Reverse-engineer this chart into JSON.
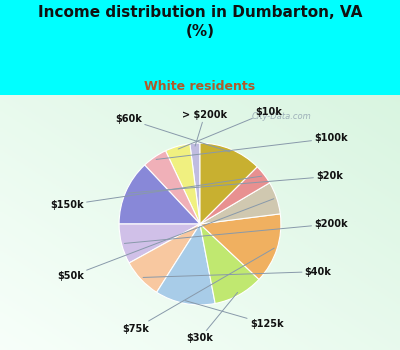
{
  "title": "Income distribution in Dumbarton, VA\n(%)",
  "subtitle": "White residents",
  "title_color": "#111111",
  "subtitle_color": "#b05a2a",
  "labels": [
    "> $200k",
    "$10k",
    "$100k",
    "$20k",
    "$200k",
    "$40k",
    "$125k",
    "$30k",
    "$75k",
    "$50k",
    "$150k",
    "$60k"
  ],
  "values": [
    2.0,
    5.0,
    5.0,
    13.0,
    8.0,
    8.0,
    12.0,
    10.0,
    14.0,
    6.5,
    4.0,
    12.5
  ],
  "colors": [
    "#c0bce0",
    "#f0f080",
    "#f0b0b8",
    "#8888d8",
    "#d0c0e8",
    "#f8c8a0",
    "#a8cce8",
    "#c0e870",
    "#f0b060",
    "#d0c8b0",
    "#e89090",
    "#c8b030"
  ],
  "wedge_linewidth": 0.8,
  "wedge_edgecolor": "#ffffff",
  "label_fontsize": 7.0,
  "label_color": "#111111",
  "startangle": 90,
  "watermark": "City-Data.com",
  "top_bg": "#00ffff",
  "chart_bg_colors": [
    "#e8f8f0",
    "#c8eee0"
  ],
  "cyan_border": "#00ffff"
}
